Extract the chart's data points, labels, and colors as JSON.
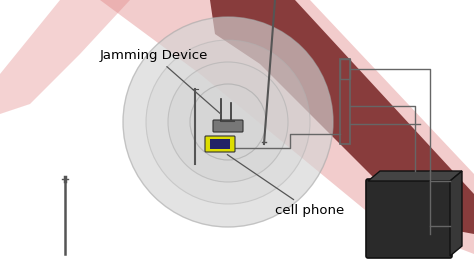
{
  "bg_color": "#ffffff",
  "fig_width": 4.74,
  "fig_height": 2.74,
  "dpi": 100,
  "label_jamming": "Jamming Device",
  "label_cell": "cell phone",
  "text_color": "#000000",
  "road_color": "#7a2828",
  "halo_color_outer": "#e88080",
  "halo_color_inner": "#f0a0a0",
  "circle_color": "#cccccc",
  "line_color": "#666666",
  "box_color": "#2a2a2a",
  "router_color": "#777777",
  "phone_color": "#dddd00",
  "antenna_color": "#555555"
}
